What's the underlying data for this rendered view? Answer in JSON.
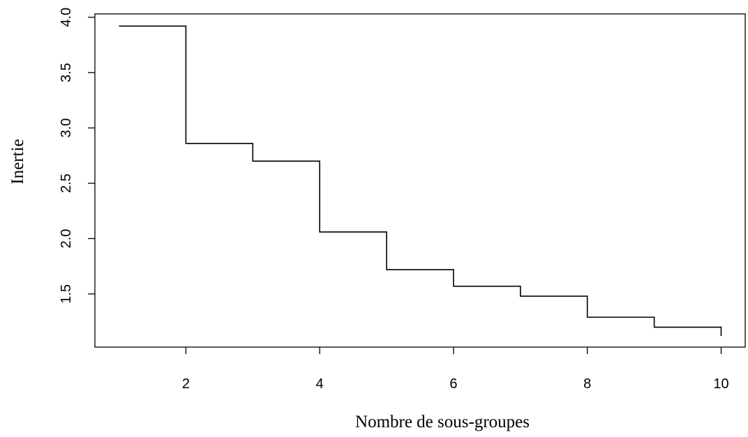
{
  "chart_data": {
    "type": "line",
    "step": "post",
    "title": "",
    "xlabel": "Nombre de sous-groupes",
    "ylabel": "Inertie",
    "x": [
      1,
      2,
      3,
      4,
      5,
      6,
      7,
      8,
      9,
      10
    ],
    "values": [
      3.92,
      2.86,
      2.7,
      2.06,
      1.72,
      1.57,
      1.48,
      1.29,
      1.2,
      1.12
    ],
    "xlim": [
      0.64,
      10.36
    ],
    "ylim": [
      1.02,
      4.03
    ],
    "xticks": [
      2,
      4,
      6,
      8,
      10
    ],
    "xtick_labels": [
      "2",
      "4",
      "6",
      "8",
      "10"
    ],
    "yticks": [
      1.5,
      2.0,
      2.5,
      3.0,
      3.5,
      4.0
    ],
    "ytick_labels": [
      "1.5",
      "2.0",
      "2.5",
      "3.0",
      "3.5",
      "4.0"
    ],
    "grid": false,
    "line_color": "#000000"
  }
}
